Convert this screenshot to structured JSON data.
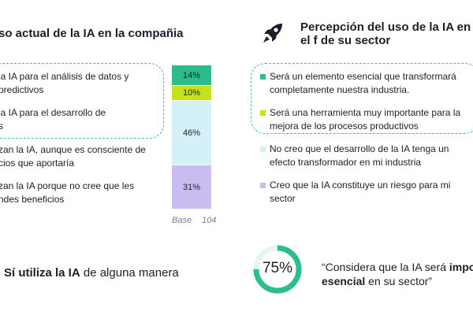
{
  "left_panel": {
    "title": "so actual de la IA en la compañia",
    "items": [
      "la IA para el análisis de datos y\npredictivos",
      "la IA para el desarrollo de\ns",
      "zan la IA, aunque es consciente de\ncios que aportaría",
      "zan la IA porque no cree que les\nndes beneficios"
    ],
    "base_label": "Base",
    "base_value": "104"
  },
  "chart_data": {
    "type": "bar",
    "orientation": "stacked-vertical",
    "segments": [
      {
        "label": "14%",
        "value": 14,
        "color": "#2dbd8b"
      },
      {
        "label": "10%",
        "value": 10,
        "color": "#c5e31b"
      },
      {
        "label": "46%",
        "value": 46,
        "color": "#d4f1f8"
      },
      {
        "label": "31%",
        "value": 31,
        "color": "#c9bdf0"
      }
    ]
  },
  "right_panel": {
    "title": "Percepción del uso de la IA en el f de su sector",
    "legend": [
      {
        "text": "Será un elemento esencial que transformará completamente nuestra industria.",
        "color": "#2dbd8b"
      },
      {
        "text": "Será una herramienta muy importante para la mejora de los procesos productivos",
        "color": "#c5e31b"
      },
      {
        "text": "No creo que el desarrollo de la IA tenga un efecto transformador en mi industria",
        "color": "#d4f1f8"
      },
      {
        "text": "Creo que la IA constituye un riesgo para mi sector",
        "color": "#c9bdf0"
      }
    ]
  },
  "bottom": {
    "left_bold": "Sí utiliza la IA",
    "left_rest": " de alguna manera",
    "percent": "75%",
    "percent_value": 75,
    "quote_start": "“Considera que la IA será ",
    "quote_bold1": "impo",
    "quote_bold2": "esencial",
    "quote_end": " en su sector”"
  },
  "colors": {
    "accent": "#2dbd8b",
    "dashed": "#3fbfa0"
  },
  "icons": {
    "rocket": "rocket-icon"
  }
}
